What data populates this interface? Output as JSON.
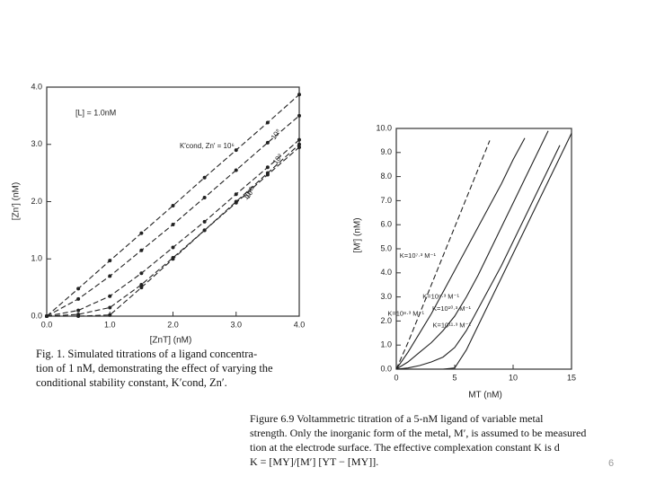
{
  "chart_data": [
    {
      "type": "line",
      "annotation": "[L] = 1.0nM",
      "x_label": "[ZnT] (nM)",
      "y_label": "[Zn′] (nM)",
      "x": [
        0,
        0.5,
        1,
        1.5,
        2,
        2.5,
        3,
        3.5,
        4
      ],
      "series": [
        {
          "name": "K′cond, Zn′ = 10⁶",
          "color": "#222222",
          "dash": true,
          "markers": true,
          "values": [
            0,
            0.48,
            0.97,
            1.45,
            1.93,
            2.42,
            2.9,
            3.38,
            3.87
          ]
        },
        {
          "name": "10⁸",
          "color": "#222222",
          "dash": true,
          "markers": true,
          "values": [
            0,
            0.3,
            0.7,
            1.15,
            1.6,
            2.07,
            2.55,
            3.03,
            3.5
          ]
        },
        {
          "name": "10⁹",
          "color": "#222222",
          "dash": true,
          "markers": true,
          "values": [
            0,
            0.1,
            0.35,
            0.75,
            1.2,
            1.65,
            2.13,
            2.6,
            3.08
          ]
        },
        {
          "name": "10¹⁰",
          "color": "#222222",
          "dash": true,
          "markers": true,
          "values": [
            0,
            0.03,
            0.15,
            0.55,
            1.02,
            1.5,
            1.98,
            2.47,
            2.95
          ]
        },
        {
          "name": "10¹²",
          "color": "#222222",
          "dash": true,
          "markers": true,
          "values": [
            0,
            0,
            0.02,
            0.5,
            1.0,
            1.5,
            2.0,
            2.5,
            3.0
          ]
        }
      ],
      "xlim": [
        0,
        4
      ],
      "ylim": [
        0,
        4
      ],
      "xticks": [
        {
          "value": 0,
          "label": "0.0"
        },
        {
          "value": 1,
          "label": "1.0"
        },
        {
          "value": 2,
          "label": "2.0"
        },
        {
          "value": 3,
          "label": "3.0"
        },
        {
          "value": 4,
          "label": "4.0"
        }
      ],
      "yticks": [
        {
          "value": 0,
          "label": "0.0"
        },
        {
          "value": 1,
          "label": "1.0"
        },
        {
          "value": 2,
          "label": "2.0"
        },
        {
          "value": 3,
          "label": "3.0"
        },
        {
          "value": 4,
          "label": "4.0"
        }
      ],
      "caption": [
        "Fig. 1.   Simulated titrations of a ligand concentra-",
        "tion of 1 nM, demonstrating the effect of varying the",
        "conditional stability constant, K′cond, Zn′."
      ]
    },
    {
      "type": "line",
      "x_label": "MT (nM)",
      "y_label": "[M′] (nM)",
      "x": [
        0,
        1,
        2,
        3,
        4,
        5,
        6,
        7,
        8,
        9,
        10,
        11,
        12,
        13,
        14,
        15
      ],
      "series": [
        {
          "name": "K=10⁷·³ M⁻¹",
          "color": "#222222",
          "dash": true,
          "markers": false,
          "values": [
            0,
            1.1,
            2.3,
            3.5,
            4.7,
            5.9,
            7.1,
            8.3,
            9.5,
            null,
            null,
            null,
            null,
            null,
            null,
            null
          ]
        },
        {
          "name": "K=10⁸·³ M⁻¹",
          "color": "#222222",
          "dash": false,
          "markers": false,
          "values": [
            0,
            0.7,
            1.5,
            2.3,
            3.2,
            4.1,
            5.0,
            5.9,
            6.8,
            7.7,
            8.7,
            9.6,
            null,
            null,
            null,
            null
          ]
        },
        {
          "name": "K=10⁹·³ M⁻¹",
          "color": "#222222",
          "dash": false,
          "markers": false,
          "values": [
            0,
            0.3,
            0.7,
            1.1,
            1.6,
            2.2,
            3.0,
            3.9,
            4.9,
            5.9,
            6.9,
            7.9,
            8.9,
            9.9,
            null,
            null
          ]
        },
        {
          "name": "K=10¹⁰·³ M⁻¹",
          "color": "#222222",
          "dash": false,
          "markers": false,
          "values": [
            0,
            0.05,
            0.15,
            0.3,
            0.5,
            0.9,
            1.6,
            2.5,
            3.4,
            4.3,
            5.3,
            6.3,
            7.3,
            8.3,
            9.3,
            null
          ]
        },
        {
          "name": "K=10¹¹·³ M⁻¹",
          "color": "#222222",
          "dash": false,
          "markers": false,
          "values": [
            0,
            0,
            0,
            0,
            0,
            0.05,
            0.8,
            1.8,
            2.8,
            3.8,
            4.8,
            5.8,
            6.8,
            7.8,
            8.8,
            9.8
          ]
        }
      ],
      "xlim": [
        0,
        15
      ],
      "ylim": [
        0,
        10
      ],
      "xticks": [
        0,
        5,
        10,
        15
      ],
      "yticks": [
        {
          "value": 0,
          "label": "0.0"
        },
        {
          "value": 1,
          "label": "1.0"
        },
        {
          "value": 2,
          "label": "2.0"
        },
        {
          "value": 3,
          "label": "3.0"
        },
        {
          "value": 4,
          "label": "4.0"
        },
        {
          "value": 5,
          "label": "5.0"
        },
        {
          "value": 6,
          "label": "6.0"
        },
        {
          "value": 7,
          "label": "7.0"
        },
        {
          "value": 8,
          "label": "8.0"
        },
        {
          "value": 9,
          "label": "9.0"
        },
        {
          "value": 10,
          "label": "10.0"
        }
      ],
      "caption": [
        "Figure 6.9   Voltammetric titration of a 5-nM ligand of variable metal",
        "strength. Only the inorganic form of the metal, M′, is assumed to be measured",
        "tion at the electrode surface. The effective complexation constant K is d",
        "K = [MY]/[M′] [YT − [MY]]."
      ]
    }
  ],
  "page_number": "6"
}
